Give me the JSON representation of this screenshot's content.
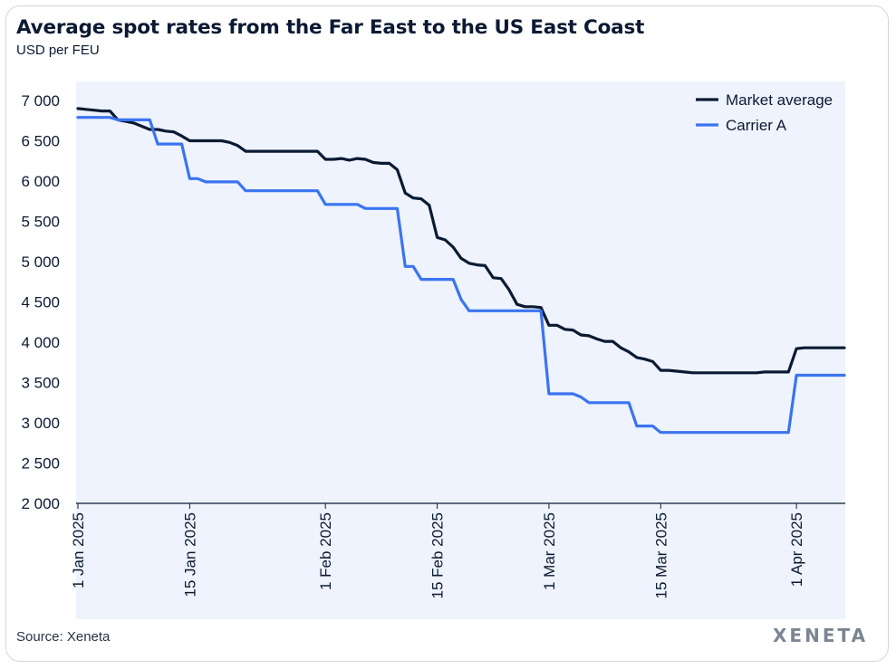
{
  "header": {
    "title": "Average spot rates from the Far East to the US East Coast",
    "subtitle": "USD per FEU"
  },
  "footer": {
    "source": "Source: Xeneta",
    "logo_text": "XENETA"
  },
  "colors": {
    "market_average": "#0b1a33",
    "carrier_a": "#3a74f0",
    "plot_background": "#eef3fd"
  },
  "chart_data": {
    "type": "line",
    "title": "Average spot rates from the Far East to the US East Coast",
    "ylabel": "USD per FEU",
    "xlabel": "",
    "x_range": [
      "2025-01-01",
      "2025-04-07"
    ],
    "ylim": [
      2000,
      7000
    ],
    "y_ticks": [
      {
        "value": 7000,
        "label": "7 000"
      },
      {
        "value": 6500,
        "label": "6 500"
      },
      {
        "value": 6000,
        "label": "6 000"
      },
      {
        "value": 5500,
        "label": "5 500"
      },
      {
        "value": 5000,
        "label": "5 000"
      },
      {
        "value": 4500,
        "label": "4 500"
      },
      {
        "value": 4000,
        "label": "4 000"
      },
      {
        "value": 3500,
        "label": "3 500"
      },
      {
        "value": 3000,
        "label": "3 000"
      },
      {
        "value": 2500,
        "label": "2 500"
      },
      {
        "value": 2000,
        "label": "2 000"
      }
    ],
    "x_ticks": [
      {
        "date": "2025-01-01",
        "label": "1 Jan 2025"
      },
      {
        "date": "2025-01-15",
        "label": "15 Jan 2025"
      },
      {
        "date": "2025-02-01",
        "label": "1 Feb 2025"
      },
      {
        "date": "2025-02-15",
        "label": "15 Feb 2025"
      },
      {
        "date": "2025-03-01",
        "label": "1 Mar 2025"
      },
      {
        "date": "2025-03-15",
        "label": "15 Mar 2025"
      },
      {
        "date": "2025-04-01",
        "label": "1 Apr 2025"
      }
    ],
    "grid": false,
    "legend_position": "top-right",
    "series": [
      {
        "name": "Market average",
        "color": "#0b1a33",
        "points": [
          [
            "2025-01-01",
            6900
          ],
          [
            "2025-01-02",
            6890
          ],
          [
            "2025-01-03",
            6880
          ],
          [
            "2025-01-04",
            6870
          ],
          [
            "2025-01-05",
            6870
          ],
          [
            "2025-01-06",
            6760
          ],
          [
            "2025-01-07",
            6740
          ],
          [
            "2025-01-08",
            6720
          ],
          [
            "2025-01-09",
            6680
          ],
          [
            "2025-01-10",
            6640
          ],
          [
            "2025-01-11",
            6640
          ],
          [
            "2025-01-12",
            6620
          ],
          [
            "2025-01-13",
            6610
          ],
          [
            "2025-01-14",
            6560
          ],
          [
            "2025-01-15",
            6500
          ],
          [
            "2025-01-16",
            6500
          ],
          [
            "2025-01-17",
            6500
          ],
          [
            "2025-01-18",
            6500
          ],
          [
            "2025-01-19",
            6500
          ],
          [
            "2025-01-20",
            6480
          ],
          [
            "2025-01-21",
            6440
          ],
          [
            "2025-01-22",
            6370
          ],
          [
            "2025-01-23",
            6370
          ],
          [
            "2025-01-24",
            6370
          ],
          [
            "2025-01-25",
            6370
          ],
          [
            "2025-01-26",
            6370
          ],
          [
            "2025-01-27",
            6370
          ],
          [
            "2025-01-28",
            6370
          ],
          [
            "2025-01-29",
            6370
          ],
          [
            "2025-01-30",
            6370
          ],
          [
            "2025-01-31",
            6370
          ],
          [
            "2025-02-01",
            6270
          ],
          [
            "2025-02-02",
            6270
          ],
          [
            "2025-02-03",
            6280
          ],
          [
            "2025-02-04",
            6260
          ],
          [
            "2025-02-05",
            6280
          ],
          [
            "2025-02-06",
            6270
          ],
          [
            "2025-02-07",
            6230
          ],
          [
            "2025-02-08",
            6220
          ],
          [
            "2025-02-09",
            6220
          ],
          [
            "2025-02-10",
            6140
          ],
          [
            "2025-02-11",
            5850
          ],
          [
            "2025-02-12",
            5790
          ],
          [
            "2025-02-13",
            5780
          ],
          [
            "2025-02-14",
            5700
          ],
          [
            "2025-02-15",
            5300
          ],
          [
            "2025-02-16",
            5270
          ],
          [
            "2025-02-17",
            5180
          ],
          [
            "2025-02-18",
            5040
          ],
          [
            "2025-02-19",
            4980
          ],
          [
            "2025-02-20",
            4960
          ],
          [
            "2025-02-21",
            4950
          ],
          [
            "2025-02-22",
            4800
          ],
          [
            "2025-02-23",
            4790
          ],
          [
            "2025-02-24",
            4650
          ],
          [
            "2025-02-25",
            4470
          ],
          [
            "2025-02-26",
            4440
          ],
          [
            "2025-02-27",
            4440
          ],
          [
            "2025-02-28",
            4430
          ],
          [
            "2025-03-01",
            4210
          ],
          [
            "2025-03-02",
            4210
          ],
          [
            "2025-03-03",
            4160
          ],
          [
            "2025-03-04",
            4150
          ],
          [
            "2025-03-05",
            4090
          ],
          [
            "2025-03-06",
            4080
          ],
          [
            "2025-03-07",
            4040
          ],
          [
            "2025-03-08",
            4010
          ],
          [
            "2025-03-09",
            4010
          ],
          [
            "2025-03-10",
            3930
          ],
          [
            "2025-03-11",
            3880
          ],
          [
            "2025-03-12",
            3810
          ],
          [
            "2025-03-13",
            3790
          ],
          [
            "2025-03-14",
            3760
          ],
          [
            "2025-03-15",
            3650
          ],
          [
            "2025-03-16",
            3650
          ],
          [
            "2025-03-17",
            3640
          ],
          [
            "2025-03-18",
            3630
          ],
          [
            "2025-03-19",
            3620
          ],
          [
            "2025-03-20",
            3620
          ],
          [
            "2025-03-21",
            3620
          ],
          [
            "2025-03-22",
            3620
          ],
          [
            "2025-03-23",
            3620
          ],
          [
            "2025-03-24",
            3620
          ],
          [
            "2025-03-25",
            3620
          ],
          [
            "2025-03-26",
            3620
          ],
          [
            "2025-03-27",
            3620
          ],
          [
            "2025-03-28",
            3630
          ],
          [
            "2025-03-29",
            3630
          ],
          [
            "2025-03-30",
            3630
          ],
          [
            "2025-03-31",
            3630
          ],
          [
            "2025-04-01",
            3920
          ],
          [
            "2025-04-02",
            3930
          ],
          [
            "2025-04-03",
            3930
          ],
          [
            "2025-04-04",
            3930
          ],
          [
            "2025-04-05",
            3930
          ],
          [
            "2025-04-06",
            3930
          ],
          [
            "2025-04-07",
            3930
          ]
        ]
      },
      {
        "name": "Carrier A",
        "color": "#3a74f0",
        "points": [
          [
            "2025-01-01",
            6790
          ],
          [
            "2025-01-05",
            6790
          ],
          [
            "2025-01-06",
            6760
          ],
          [
            "2025-01-10",
            6760
          ],
          [
            "2025-01-11",
            6460
          ],
          [
            "2025-01-14",
            6460
          ],
          [
            "2025-01-15",
            6030
          ],
          [
            "2025-01-16",
            6030
          ],
          [
            "2025-01-17",
            5990
          ],
          [
            "2025-01-21",
            5990
          ],
          [
            "2025-01-22",
            5880
          ],
          [
            "2025-01-31",
            5880
          ],
          [
            "2025-02-01",
            5710
          ],
          [
            "2025-02-05",
            5710
          ],
          [
            "2025-02-06",
            5660
          ],
          [
            "2025-02-09",
            5660
          ],
          [
            "2025-02-10",
            5660
          ],
          [
            "2025-02-11",
            4940
          ],
          [
            "2025-02-12",
            4940
          ],
          [
            "2025-02-13",
            4780
          ],
          [
            "2025-02-16",
            4780
          ],
          [
            "2025-02-17",
            4780
          ],
          [
            "2025-02-18",
            4530
          ],
          [
            "2025-02-19",
            4390
          ],
          [
            "2025-02-28",
            4390
          ],
          [
            "2025-03-01",
            3360
          ],
          [
            "2025-03-04",
            3360
          ],
          [
            "2025-03-05",
            3320
          ],
          [
            "2025-03-06",
            3250
          ],
          [
            "2025-03-11",
            3250
          ],
          [
            "2025-03-12",
            2960
          ],
          [
            "2025-03-14",
            2960
          ],
          [
            "2025-03-15",
            2880
          ],
          [
            "2025-03-31",
            2880
          ],
          [
            "2025-04-01",
            3590
          ],
          [
            "2025-04-07",
            3590
          ]
        ]
      }
    ]
  }
}
